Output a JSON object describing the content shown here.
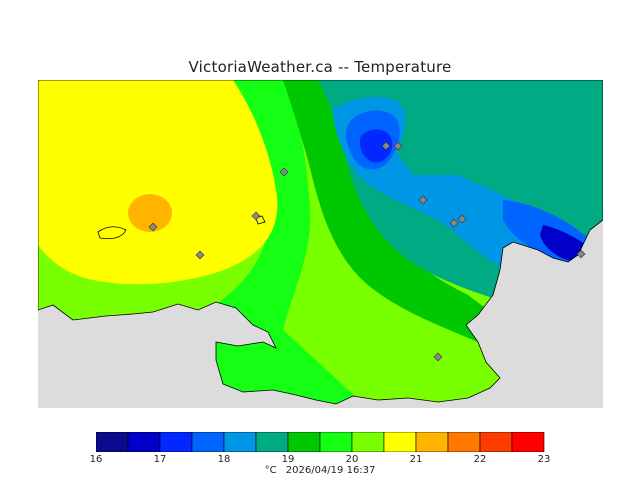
{
  "title": "VictoriaWeather.ca -- Temperature",
  "legend": {
    "unit": "°C",
    "timestamp": "2026/04/19 16:37",
    "ticks": [
      "16",
      "17",
      "18",
      "19",
      "20",
      "21",
      "22",
      "23"
    ],
    "colors": [
      "#0a0a8c",
      "#0000c8",
      "#0028ff",
      "#0064ff",
      "#0096e6",
      "#00aa82",
      "#00c800",
      "#14ff14",
      "#78ff00",
      "#ffff00",
      "#ffb400",
      "#ff7800",
      "#ff3c00",
      "#ff0000"
    ]
  },
  "map": {
    "background_color": "#dcdcdc",
    "station_marker": "diamond-icon"
  }
}
